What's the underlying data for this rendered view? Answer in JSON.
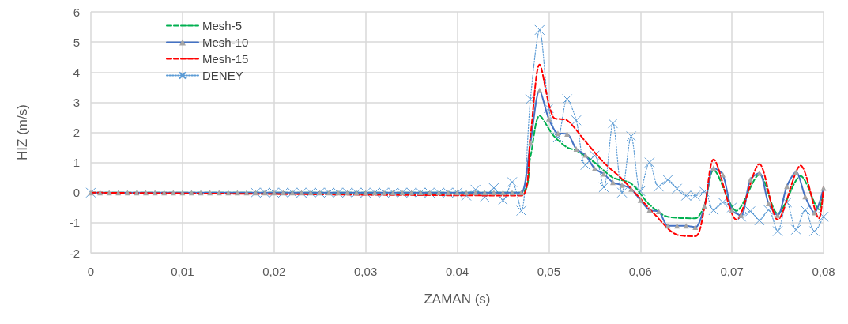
{
  "chart_data": {
    "type": "line",
    "xlabel": "ZAMAN (s)",
    "ylabel": "HIZ (m/s)",
    "xlim": [
      0,
      0.08
    ],
    "ylim": [
      -2,
      6
    ],
    "xticks": [
      {
        "value": 0,
        "label": "0"
      },
      {
        "value": 0.01,
        "label": "0,01"
      },
      {
        "value": 0.02,
        "label": "0,02"
      },
      {
        "value": 0.03,
        "label": "0,03"
      },
      {
        "value": 0.04,
        "label": "0,04"
      },
      {
        "value": 0.05,
        "label": "0,05"
      },
      {
        "value": 0.06,
        "label": "0,06"
      },
      {
        "value": 0.07,
        "label": "0,07"
      },
      {
        "value": 0.08,
        "label": "0,08"
      }
    ],
    "yticks": [
      -2,
      -1,
      0,
      1,
      2,
      3,
      4,
      5,
      6
    ],
    "grid": true,
    "legend": "top left",
    "series": [
      {
        "name": "Mesh-5",
        "color": "#00b050",
        "line_style": "dashed",
        "marker": "none",
        "x": [
          0,
          0.047,
          0.048,
          0.049,
          0.0505,
          0.052,
          0.053,
          0.055,
          0.057,
          0.059,
          0.061,
          0.063,
          0.066,
          0.067,
          0.068,
          0.0705,
          0.073,
          0.075,
          0.0775,
          0.0795,
          0.08
        ],
        "values": [
          0,
          0,
          1.2,
          2.55,
          1.9,
          1.5,
          1.4,
          1.0,
          0.5,
          0.3,
          -0.4,
          -0.8,
          -0.85,
          -0.4,
          0.75,
          -0.6,
          0.6,
          -0.7,
          0.55,
          -0.55,
          0.2
        ]
      },
      {
        "name": "Mesh-10",
        "color": "#4472c4",
        "line_style": "solid",
        "marker": "triangle",
        "x": [
          0,
          0.001,
          0.002,
          0.003,
          0.004,
          0.005,
          0.006,
          0.007,
          0.008,
          0.009,
          0.01,
          0.011,
          0.012,
          0.013,
          0.014,
          0.015,
          0.016,
          0.017,
          0.018,
          0.019,
          0.02,
          0.021,
          0.022,
          0.023,
          0.024,
          0.025,
          0.026,
          0.027,
          0.028,
          0.029,
          0.03,
          0.031,
          0.032,
          0.033,
          0.034,
          0.035,
          0.036,
          0.037,
          0.038,
          0.039,
          0.04,
          0.041,
          0.042,
          0.043,
          0.044,
          0.045,
          0.046,
          0.047,
          0.048,
          0.049,
          0.05,
          0.051,
          0.052,
          0.053,
          0.054,
          0.055,
          0.056,
          0.057,
          0.058,
          0.059,
          0.06,
          0.061,
          0.062,
          0.063,
          0.064,
          0.065,
          0.066,
          0.067,
          0.068,
          0.069,
          0.07,
          0.071,
          0.072,
          0.073,
          0.074,
          0.075,
          0.076,
          0.077,
          0.078,
          0.079,
          0.08
        ],
        "values": [
          0,
          0,
          0,
          0,
          0,
          0,
          0,
          0,
          0,
          0,
          0,
          0,
          0,
          0,
          0,
          0,
          0,
          0,
          0,
          0,
          0,
          0,
          0,
          0,
          0,
          0,
          0,
          0,
          0,
          0,
          0,
          0,
          0,
          0,
          0,
          0,
          0,
          0,
          0,
          0,
          0,
          0,
          0,
          0,
          0,
          0,
          0,
          0,
          1.65,
          3.4,
          2.45,
          1.97,
          1.95,
          1.45,
          1.25,
          0.8,
          0.62,
          0.34,
          0.25,
          0.12,
          -0.25,
          -0.58,
          -0.62,
          -1.1,
          -1.1,
          -1.1,
          -1.15,
          -0.45,
          0.82,
          0.6,
          -0.58,
          -0.75,
          0.43,
          0.65,
          -0.36,
          -0.75,
          0.21,
          0.68,
          -0.13,
          -0.66,
          0.15
        ]
      },
      {
        "name": "Mesh-15",
        "color": "#ff0000",
        "line_style": "dashed",
        "marker": "none",
        "x": [
          0,
          0.047,
          0.048,
          0.049,
          0.0505,
          0.052,
          0.054,
          0.056,
          0.058,
          0.06,
          0.0615,
          0.064,
          0.066,
          0.067,
          0.068,
          0.0705,
          0.073,
          0.075,
          0.0775,
          0.0795,
          0.08
        ],
        "values": [
          0,
          -0.1,
          1.9,
          4.25,
          2.5,
          2.4,
          1.7,
          1.0,
          0.45,
          -0.2,
          -0.7,
          -1.4,
          -1.45,
          -0.5,
          1.1,
          -0.9,
          0.95,
          -0.9,
          0.9,
          -0.85,
          0.2
        ]
      },
      {
        "name": "DENEY",
        "color": "#5b9bd5",
        "line_style": "dotted",
        "marker": "cross",
        "x": [
          0,
          0.018,
          0.019,
          0.02,
          0.021,
          0.022,
          0.023,
          0.024,
          0.025,
          0.026,
          0.027,
          0.028,
          0.029,
          0.03,
          0.031,
          0.032,
          0.033,
          0.034,
          0.035,
          0.036,
          0.037,
          0.038,
          0.039,
          0.04,
          0.041,
          0.042,
          0.043,
          0.044,
          0.045,
          0.046,
          0.047,
          0.048,
          0.049,
          0.05,
          0.051,
          0.052,
          0.053,
          0.054,
          0.055,
          0.056,
          0.057,
          0.058,
          0.059,
          0.06,
          0.061,
          0.062,
          0.063,
          0.064,
          0.065,
          0.066,
          0.067,
          0.068,
          0.069,
          0.07,
          0.071,
          0.072,
          0.073,
          0.074,
          0.075,
          0.076,
          0.077,
          0.078,
          0.079,
          0.08
        ],
        "values": [
          0,
          0,
          0,
          0,
          0,
          0,
          0,
          0,
          0,
          0,
          0,
          0,
          0,
          0,
          0,
          0,
          0,
          0,
          0,
          0,
          0,
          0,
          0,
          0,
          -0.1,
          0.1,
          -0.15,
          0.15,
          -0.25,
          0.35,
          -0.6,
          3.1,
          5.4,
          2.8,
          1.83,
          3.1,
          2.4,
          0.92,
          1.23,
          0.18,
          2.3,
          0,
          1.87,
          0.05,
          1.0,
          0.2,
          0.42,
          0.13,
          -0.1,
          -0.1,
          0.03,
          -0.58,
          -0.32,
          -0.49,
          -0.8,
          -0.62,
          -0.92,
          -0.58,
          -1.28,
          -0.32,
          -1.23,
          -0.58,
          -1.28,
          -0.8
        ]
      }
    ]
  }
}
